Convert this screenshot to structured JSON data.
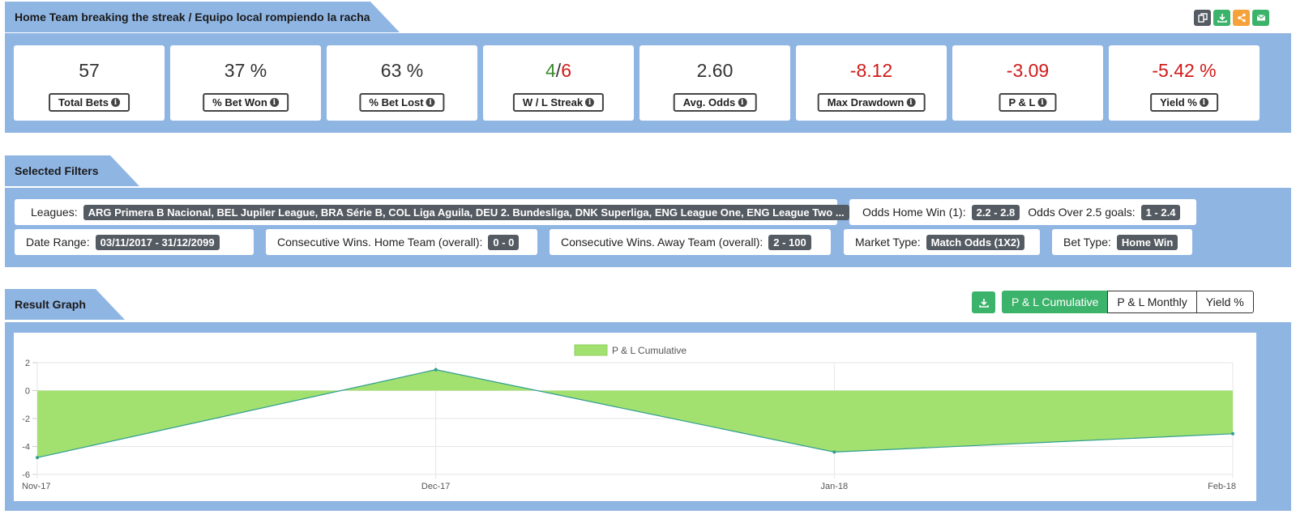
{
  "header": {
    "title": "Home Team breaking the streak / Equipo local rompiendo la racha",
    "actions": [
      {
        "name": "copy-icon",
        "color": "#555b62"
      },
      {
        "name": "download-icon",
        "color": "#3cb36b"
      },
      {
        "name": "share-icon",
        "color": "#f5a23a"
      },
      {
        "name": "email-icon",
        "color": "#3cb36b"
      }
    ]
  },
  "stats": [
    {
      "value": "57",
      "label": "Total Bets"
    },
    {
      "value": "37 %",
      "label": "% Bet Won"
    },
    {
      "value": "63 %",
      "label": "% Bet Lost"
    },
    {
      "value_win": "4",
      "value_sep": "/",
      "value_loss": "6",
      "label": "W / L Streak"
    },
    {
      "value": "2.60",
      "label": "Avg. Odds"
    },
    {
      "value": "-8.12",
      "label": "Max Drawdown"
    },
    {
      "value": "-3.09",
      "label": "P & L"
    },
    {
      "value": "-5.42 %",
      "label": "Yield %"
    }
  ],
  "filters": {
    "title": "Selected Filters",
    "leagues_label": "Leagues:",
    "leagues_value": "ARG Primera B Nacional, BEL Jupiler League, BRA Série B, COL Liga Aguila, DEU 2. Bundesliga, DNK Superliga, ENG League One, ENG League Two ...",
    "odds_home_label": "Odds Home Win (1):",
    "odds_home_value": "2.2 - 2.8",
    "odds_over_label": "Odds Over 2.5 goals:",
    "odds_over_value": "1 - 2.4",
    "date_label": "Date Range:",
    "date_value": "03/11/2017 - 31/12/2099",
    "cons_home_label": "Consecutive Wins. Home Team (overall):",
    "cons_home_value": "0 - 0",
    "cons_away_label": "Consecutive Wins. Away Team (overall):",
    "cons_away_value": "2 - 100",
    "market_label": "Market Type:",
    "market_value": "Match Odds (1X2)",
    "bet_label": "Bet Type:",
    "bet_value": "Home Win"
  },
  "graph": {
    "title": "Result Graph",
    "buttons": [
      "P & L Cumulative",
      "P & L Monthly",
      "Yield %"
    ],
    "active": "P & L Cumulative"
  },
  "chart_data": {
    "type": "area",
    "x": [
      "Nov-17",
      "Dec-17",
      "Jan-18",
      "Feb-18"
    ],
    "series": [
      {
        "name": "P & L Cumulative",
        "values": [
          -4.8,
          1.5,
          -4.4,
          -3.09
        ],
        "color": "#a2e070",
        "line_color": "#2e9e8f"
      }
    ],
    "ylim": [
      -6,
      2
    ],
    "yticks": [
      2,
      0,
      -2,
      -4,
      -6
    ],
    "grid": true,
    "legend": "top-center"
  }
}
